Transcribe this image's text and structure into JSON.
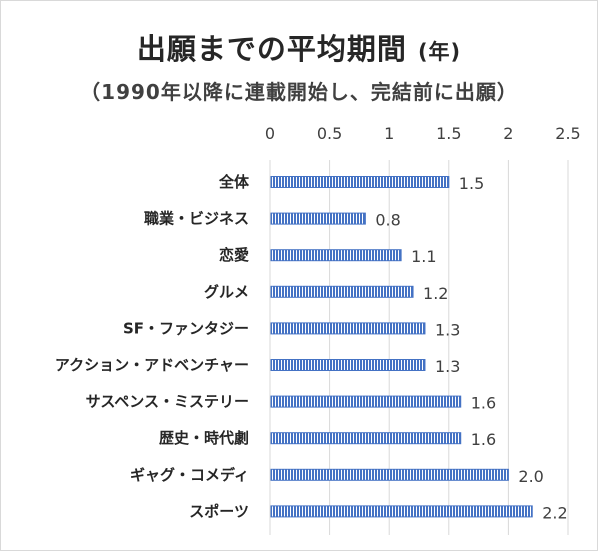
{
  "title": "出願までの平均期間",
  "title_unit": "(年)",
  "subtitle": "（1990年以降に連載開始し、完結前に出願）",
  "chart_data": {
    "type": "bar",
    "orientation": "horizontal",
    "categories": [
      "全体",
      "職業・ビジネス",
      "恋愛",
      "グルメ",
      "SF・ファンタジー",
      "アクション・アドベンチャー",
      "サスペンス・ミステリー",
      "歴史・時代劇",
      "ギャグ・コメディ",
      "スポーツ"
    ],
    "values": [
      1.5,
      0.8,
      1.1,
      1.2,
      1.3,
      1.3,
      1.6,
      1.6,
      2.0,
      2.2
    ],
    "data_labels": [
      "1.5",
      "0.8",
      "1.1",
      "1.2",
      "1.3",
      "1.3",
      "1.6",
      "1.6",
      "2.0",
      "2.2"
    ],
    "title": "出願までの平均期間 (年)",
    "subtitle": "（1990年以降に連載開始し、完結前に出願）",
    "xlim": [
      0,
      2.5
    ],
    "xticks": [
      0,
      0.5,
      1,
      1.5,
      2,
      2.5
    ],
    "xtick_labels": [
      "0",
      "0.5",
      "1",
      "1.5",
      "2",
      "2.5"
    ],
    "x_axis_position": "top",
    "grid": true,
    "bar_color": "#4472c4",
    "bar_pattern": "vertical-stripes"
  }
}
